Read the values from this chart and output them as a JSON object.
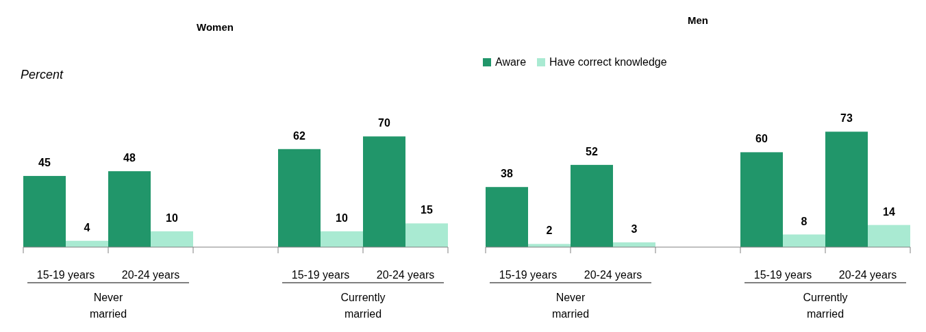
{
  "chart_data": [
    {
      "type": "bar",
      "title": "Women",
      "ylabel": "Percent",
      "categories": [
        "15-19 years",
        "20-24 years",
        null,
        "15-19 years",
        "20-24 years"
      ],
      "data_labels": true,
      "annotations": [
        "Never married",
        "Currently married"
      ],
      "series": [
        {
          "color": "#21966a",
          "values": [
            45,
            48,
            null,
            62,
            70
          ]
        },
        {
          "color": "#a9ead2",
          "values": [
            4,
            10,
            null,
            10,
            15
          ]
        }
      ]
    },
    {
      "type": "bar",
      "title": "Men",
      "categories": [
        "15-19 years",
        "20-24 years",
        null,
        "15-19 years",
        "20-24 years"
      ],
      "data_labels": true,
      "legend": "top left",
      "annotations": [
        "Never married",
        "Currently married"
      ],
      "series": [
        {
          "name": "Aware",
          "color": "#21966a",
          "values": [
            38,
            52,
            null,
            60,
            73
          ]
        },
        {
          "name": "Have correct knowledge",
          "color": "#a9ead2",
          "values": [
            2,
            3,
            null,
            8,
            14
          ]
        }
      ]
    }
  ]
}
